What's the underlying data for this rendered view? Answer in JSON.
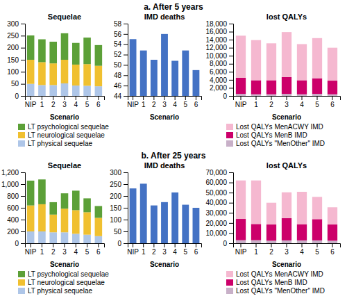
{
  "annotations": [
    "a. After 5 years",
    "b. After 25 years"
  ],
  "chart_data": [
    {
      "type": "bar",
      "stacked": true,
      "title": "Sequelae",
      "xlabel": "Scenario",
      "categories": [
        "NIP",
        "1",
        "2",
        "3",
        "4",
        "5",
        "6"
      ],
      "series": [
        {
          "name": "LT physical sequelae",
          "color": "#aec6e8",
          "values": [
            50,
            45,
            45,
            52,
            43,
            42,
            40
          ]
        },
        {
          "name": "LT neurological sequelae",
          "color": "#f0c030",
          "values": [
            100,
            95,
            90,
            98,
            87,
            90,
            85
          ]
        },
        {
          "name": "LT psychological sequelae",
          "color": "#5ca038",
          "values": [
            101,
            95,
            90,
            110,
            90,
            110,
            86
          ]
        }
      ],
      "ylim": [
        0,
        300
      ],
      "yticks": [
        0,
        50,
        100,
        150,
        200,
        250,
        300
      ],
      "grid": false,
      "legend": "bottom"
    },
    {
      "type": "bar",
      "title": "IMD deaths",
      "xlabel": "Scenario",
      "categories": [
        "NIP",
        "1",
        "2",
        "3",
        "4",
        "5",
        "6"
      ],
      "values": [
        55.0,
        52.8,
        51.0,
        56.0,
        50.8,
        52.8,
        49.0
      ],
      "color": "#4472c4",
      "ylim": [
        44,
        58
      ],
      "yticks": [
        44,
        46,
        48,
        50,
        52,
        54,
        56,
        58
      ],
      "grid": false
    },
    {
      "type": "bar",
      "stacked": true,
      "title": "lost QALYs",
      "xlabel": "Scenario",
      "categories": [
        "NIP",
        "1",
        "2",
        "3",
        "4",
        "5",
        "6"
      ],
      "series": [
        {
          "name": "Lost QALYs \"MenOther\" IMD",
          "color": "#c8b0c8",
          "values": [
            500,
            400,
            400,
            500,
            400,
            500,
            400
          ]
        },
        {
          "name": "Lost QALYs MenB IMD",
          "color": "#cc006a",
          "values": [
            4000,
            3500,
            3500,
            4200,
            3500,
            3900,
            3400
          ]
        },
        {
          "name": "Lost QALYs MenACWY IMD",
          "color": "#f5b8d0",
          "values": [
            10500,
            10000,
            9200,
            11200,
            9000,
            10000,
            8200
          ]
        }
      ],
      "ylim": [
        0,
        18000
      ],
      "yticks": [
        0,
        {
          "value": 2000,
          "label": "2,000"
        },
        {
          "value": 4000,
          "label": "4,000"
        },
        {
          "value": 6000,
          "label": "6,000"
        },
        {
          "value": 8000,
          "label": "8,000"
        },
        {
          "value": 10000,
          "label": "10,000"
        },
        {
          "value": 12000,
          "label": "12,000"
        },
        {
          "value": 14000,
          "label": "14,000"
        },
        {
          "value": 16000,
          "label": "16,000"
        },
        {
          "value": 18000,
          "label": "18,000"
        }
      ],
      "grid": false,
      "legend": "bottom"
    },
    {
      "type": "bar",
      "stacked": true,
      "title": "Sequelae",
      "xlabel": "Scenario",
      "categories": [
        "NIP",
        "1",
        "2",
        "3",
        "4",
        "5",
        "6"
      ],
      "series": [
        {
          "name": "LT physical sequelae",
          "color": "#aec6e8",
          "values": [
            200,
            200,
            185,
            185,
            160,
            145,
            120
          ]
        },
        {
          "name": "LT neurological sequelae",
          "color": "#f0c030",
          "values": [
            440,
            460,
            300,
            400,
            400,
            380,
            310
          ]
        },
        {
          "name": "LT psychological sequelae",
          "color": "#5ca038",
          "values": [
            420,
            420,
            210,
            260,
            330,
            235,
            200
          ]
        }
      ],
      "ylim": [
        0,
        1200
      ],
      "yticks": [
        0,
        200,
        400,
        600,
        800,
        {
          "value": 1000,
          "label": "1,000"
        },
        {
          "value": 1200,
          "label": "1,200"
        }
      ],
      "grid": false,
      "legend": "bottom"
    },
    {
      "type": "bar",
      "title": "IMD deaths",
      "xlabel": "Scenario",
      "categories": [
        "NIP",
        "1",
        "2",
        "3",
        "4",
        "5",
        "6"
      ],
      "values": [
        232,
        252,
        160,
        174,
        215,
        163,
        150
      ],
      "color": "#4472c4",
      "ylim": [
        0,
        300
      ],
      "yticks": [
        0,
        50,
        100,
        150,
        200,
        250,
        300
      ],
      "grid": false
    },
    {
      "type": "bar",
      "stacked": true,
      "title": "lost QALYs",
      "xlabel": "Scenario",
      "categories": [
        "NIP",
        "1",
        "2",
        "3",
        "4",
        "5",
        "6"
      ],
      "series": [
        {
          "name": "Lost QALYs \"MenOther\" IMD",
          "color": "#c8b0c8",
          "values": [
            3000,
            3000,
            2500,
            2800,
            2800,
            2800,
            2500
          ]
        },
        {
          "name": "Lost QALYs MenB IMD",
          "color": "#cc006a",
          "values": [
            21000,
            16000,
            16000,
            22000,
            16000,
            21000,
            16000
          ]
        },
        {
          "name": "Lost QALYs MenACWY IMD",
          "color": "#f5b8d0",
          "values": [
            38000,
            43000,
            21500,
            25500,
            32000,
            22000,
            17000
          ]
        }
      ],
      "ylim": [
        0,
        70000
      ],
      "yticks": [
        0,
        {
          "value": 10000,
          "label": "10,000"
        },
        {
          "value": 20000,
          "label": "20,000"
        },
        {
          "value": 30000,
          "label": "30,000"
        },
        {
          "value": 40000,
          "label": "40,000"
        },
        {
          "value": 50000,
          "label": "50,000"
        },
        {
          "value": 60000,
          "label": "60,000"
        },
        {
          "value": 70000,
          "label": "70,000"
        }
      ],
      "grid": false,
      "legend": "bottom"
    }
  ]
}
